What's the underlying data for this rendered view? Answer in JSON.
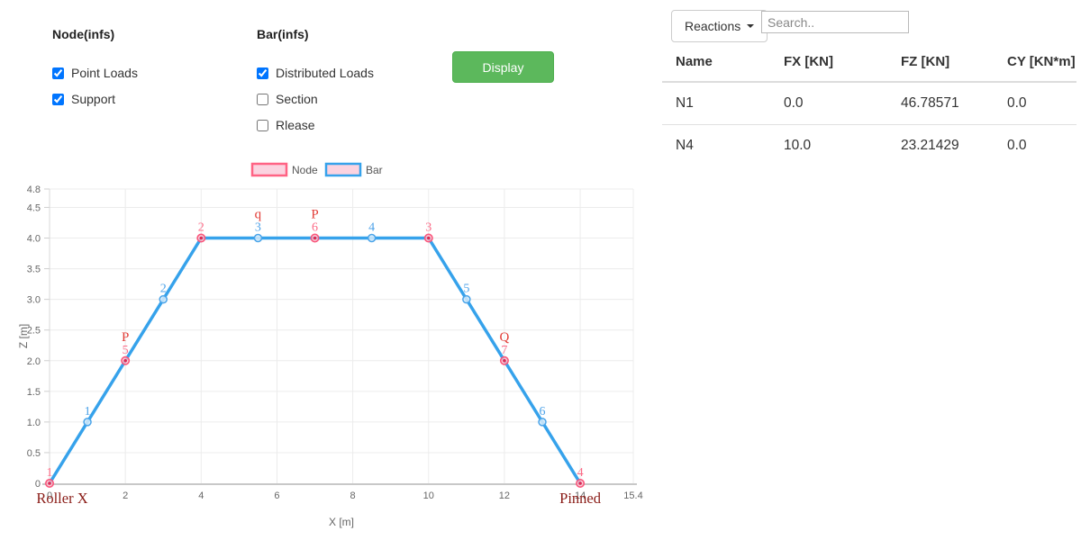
{
  "panel": {
    "node_group": {
      "title": "Node(infs)",
      "items": [
        {
          "label": "Point Loads",
          "checked": true
        },
        {
          "label": "Support",
          "checked": true
        }
      ]
    },
    "bar_group": {
      "title": "Bar(infs)",
      "items": [
        {
          "label": "Distributed Loads",
          "checked": true
        },
        {
          "label": "Section",
          "checked": false
        },
        {
          "label": "Rlease",
          "checked": false
        }
      ]
    },
    "display_button": "Display"
  },
  "results": {
    "dropdown_label": "Reactions",
    "search_placeholder": "Search..",
    "table": {
      "columns": [
        "Name",
        "FX [KN]",
        "FZ [KN]",
        "CY [KN*m]"
      ],
      "rows": [
        [
          "N1",
          "0.0",
          "46.78571",
          "0.0"
        ],
        [
          "N4",
          "10.0",
          "23.21429",
          "0.0"
        ]
      ]
    }
  },
  "chart_data": {
    "type": "line",
    "title": "",
    "xlabel": "X [m]",
    "ylabel": "Z [m]",
    "xlim": [
      0,
      15.4
    ],
    "ylim": [
      0,
      4.8
    ],
    "x_ticks": [
      0,
      2,
      4,
      6,
      8,
      10,
      12,
      14,
      15.4
    ],
    "y_ticks": [
      0,
      0.5,
      1.0,
      1.5,
      2.0,
      2.5,
      3.0,
      3.5,
      4.0,
      4.5,
      4.8
    ],
    "grid": true,
    "legend_position": "top-center",
    "legend": [
      {
        "label": "Node",
        "border": "#ff6384",
        "fill": "#fbd3e0"
      },
      {
        "label": "Bar",
        "border": "#36a2eb",
        "fill": "#fbd3e0"
      }
    ],
    "series": [
      {
        "name": "Bar",
        "x": [
          0,
          2,
          4,
          7,
          10,
          12,
          14
        ],
        "y": [
          0,
          2,
          4,
          4,
          4,
          2,
          0
        ]
      }
    ],
    "nodes": [
      {
        "id": "1",
        "x": 0,
        "z": 0
      },
      {
        "id": "5",
        "x": 2,
        "z": 2
      },
      {
        "id": "2",
        "x": 4,
        "z": 4
      },
      {
        "id": "6",
        "x": 7,
        "z": 4
      },
      {
        "id": "3",
        "x": 10,
        "z": 4
      },
      {
        "id": "7",
        "x": 12,
        "z": 2
      },
      {
        "id": "4",
        "x": 14,
        "z": 0
      }
    ],
    "bar_midpoints": [
      {
        "id": "1",
        "x": 1,
        "z": 1
      },
      {
        "id": "2",
        "x": 3,
        "z": 3
      },
      {
        "id": "3",
        "x": 5.5,
        "z": 4
      },
      {
        "id": "4",
        "x": 8.5,
        "z": 4
      },
      {
        "id": "5",
        "x": 11,
        "z": 3
      },
      {
        "id": "6",
        "x": 13,
        "z": 1
      }
    ],
    "load_labels": [
      {
        "text": "P",
        "x": 2,
        "z": 2
      },
      {
        "text": "q",
        "x": 5.5,
        "z": 4
      },
      {
        "text": "P",
        "x": 7,
        "z": 4
      },
      {
        "text": "Q",
        "x": 12,
        "z": 2
      }
    ],
    "support_labels": [
      {
        "text": "Roller X",
        "x": 0
      },
      {
        "text": "Pinned",
        "x": 14
      }
    ],
    "colors": {
      "bar_line": "#36a2eb",
      "bar_marker_stroke": "#4aa4e9",
      "bar_marker_fill": "#d6ebfa",
      "bar_label": "#4da2e8",
      "node_marker_stroke": "#f9577c",
      "node_marker_fill": "#fbc2d0",
      "node_marker_dot": "#d92b55",
      "node_label": "#fc6b87",
      "load_label": "#e23c36",
      "support_label": "#8a1c17",
      "grid": "#ececec",
      "axis": "#c8c8c8",
      "tick_text": "#666666",
      "display_button": "#5cb85c"
    }
  }
}
